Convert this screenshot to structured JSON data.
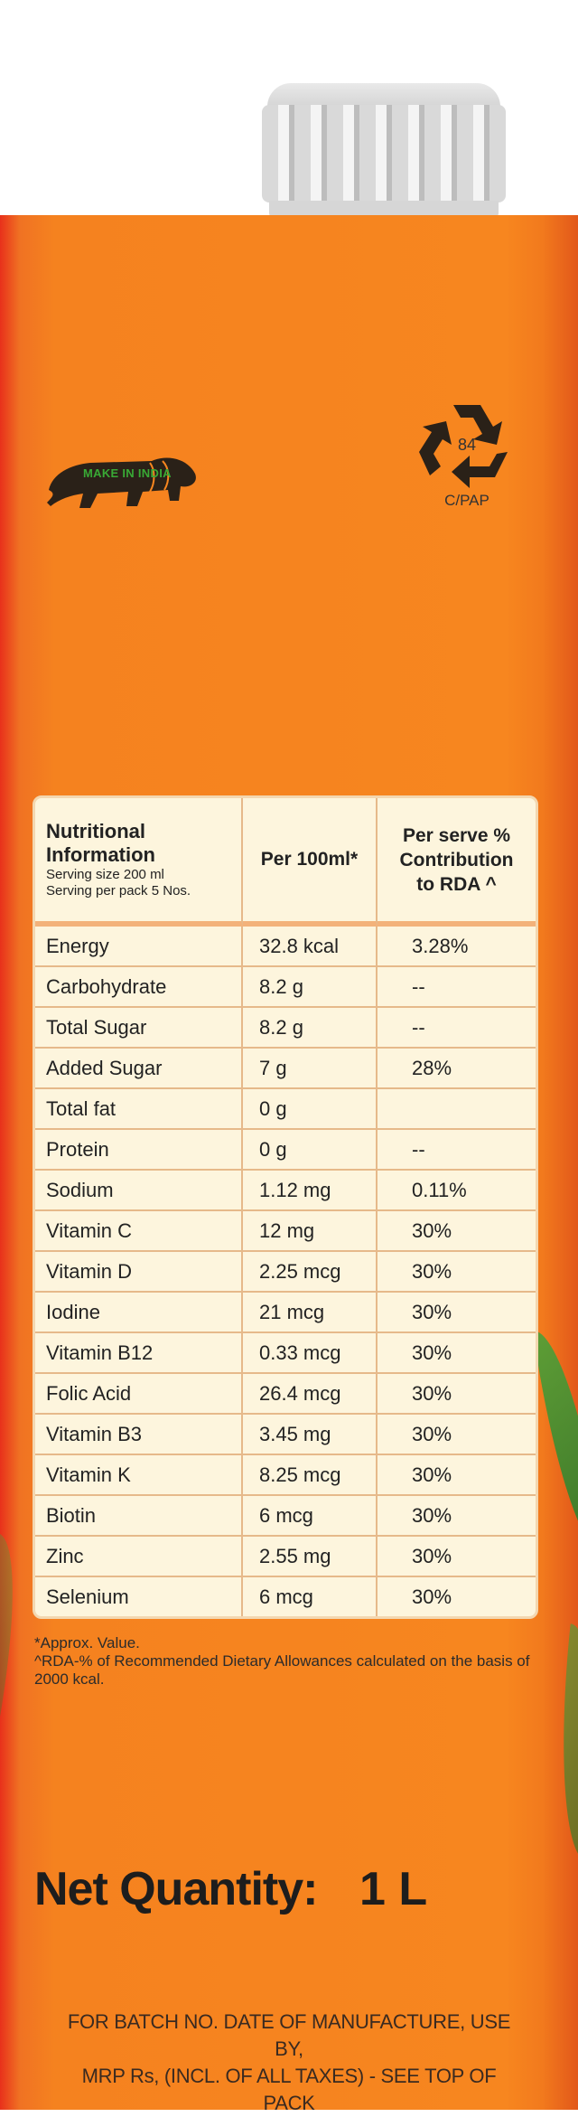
{
  "logos": {
    "make_in_india": "MAKE IN INDIA",
    "recycle_number": "84",
    "recycle_label": "C/PAP",
    "lion_icon": "lion-icon",
    "recycle_icon": "recycle-icon"
  },
  "nutrition": {
    "header": {
      "col1_title": "Nutritional Information",
      "col1_serving_size": "Serving size 200 ml",
      "col1_serving_per_pack": "Serving per pack 5 Nos.",
      "col2": "Per 100ml*",
      "col3_line1": "Per serve %",
      "col3_line2": "Contribution",
      "col3_line3": "to RDA ^"
    },
    "rows": [
      {
        "name": "Energy",
        "per100": "32.8 kcal",
        "rda": "3.28%"
      },
      {
        "name": "Carbohydrate",
        "per100": "8.2 g",
        "rda": "--"
      },
      {
        "name": "Total Sugar",
        "per100": "8.2 g",
        "rda": "--"
      },
      {
        "name": "Added Sugar",
        "per100": "7 g",
        "rda": "28%"
      },
      {
        "name": "Total fat",
        "per100": "0 g",
        "rda": ""
      },
      {
        "name": "Protein",
        "per100": "0 g",
        "rda": "--"
      },
      {
        "name": "Sodium",
        "per100": "1.12 mg",
        "rda": "0.11%"
      },
      {
        "name": "Vitamin C",
        "per100": "12 mg",
        "rda": "30%"
      },
      {
        "name": "Vitamin D",
        "per100": "2.25 mcg",
        "rda": "30%"
      },
      {
        "name": "Iodine",
        "per100": "21 mcg",
        "rda": "30%"
      },
      {
        "name": "Vitamin B12",
        "per100": "0.33 mcg",
        "rda": "30%"
      },
      {
        "name": "Folic Acid",
        "per100": "26.4 mcg",
        "rda": "30%"
      },
      {
        "name": "Vitamin B3",
        "per100": "3.45 mg",
        "rda": "30%"
      },
      {
        "name": "Vitamin K",
        "per100": "8.25 mcg",
        "rda": "30%"
      },
      {
        "name": "Biotin",
        "per100": "6 mcg",
        "rda": "30%"
      },
      {
        "name": "Zinc",
        "per100": "2.55 mg",
        "rda": "30%"
      },
      {
        "name": "Selenium",
        "per100": "6 mcg",
        "rda": "30%"
      }
    ]
  },
  "notes": {
    "approx": "*Approx. Value.",
    "rda": "^RDA-% of Recommended Dietary Allowances calculated on the basis of 2000 kcal."
  },
  "net_quantity": {
    "label": "Net Quantity:",
    "value": "1 L"
  },
  "batch": {
    "line1": "FOR BATCH NO. DATE OF MANUFACTURE, USE BY,",
    "line2": "MRP Rs, (INCL. OF ALL TAXES) - SEE TOP OF PACK"
  },
  "colors": {
    "carton": "#f7861f",
    "table_bg": "#fdf5dd",
    "border": "#e6b98a",
    "cap": "#d9d9d9"
  }
}
